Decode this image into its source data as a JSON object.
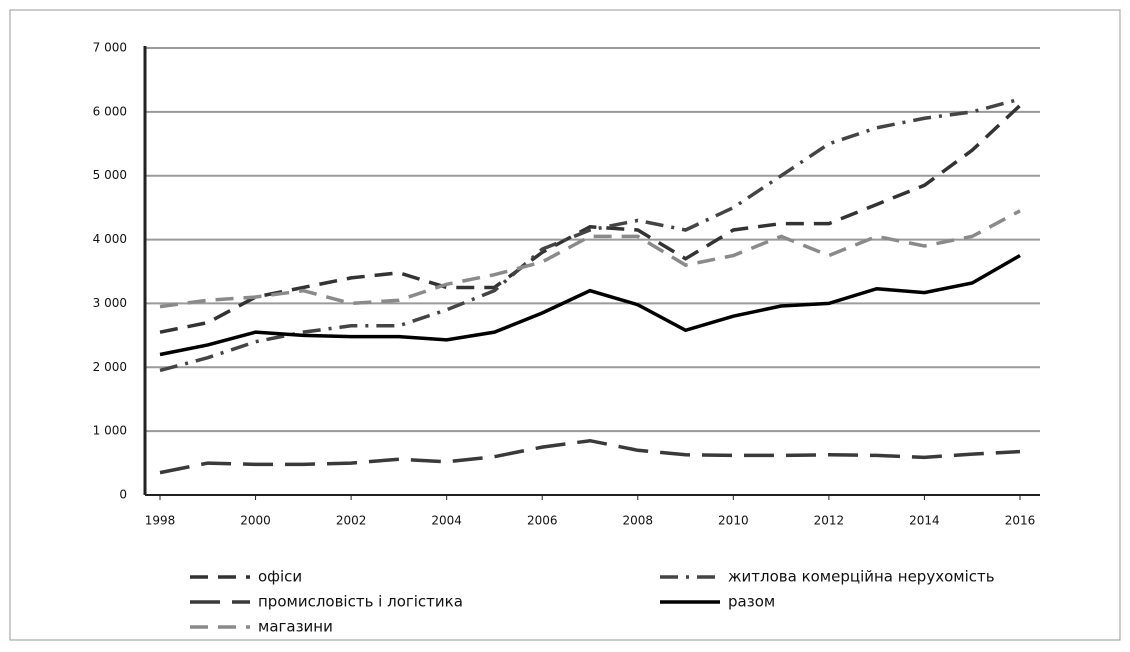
{
  "chart_data": {
    "type": "line",
    "x": [
      1998,
      1999,
      2000,
      2001,
      2002,
      2003,
      2004,
      2005,
      2006,
      2007,
      2008,
      2009,
      2010,
      2011,
      2012,
      2013,
      2014,
      2015,
      2016
    ],
    "xlim": [
      1998,
      2016
    ],
    "xticks": [
      1998,
      2000,
      2002,
      2004,
      2006,
      2008,
      2010,
      2012,
      2014,
      2016
    ],
    "ylim": [
      0,
      7000
    ],
    "yticks": [
      {
        "value": 0,
        "label": "0"
      },
      {
        "value": 1000,
        "label": "1 000"
      },
      {
        "value": 2000,
        "label": "2 000"
      },
      {
        "value": 3000,
        "label": "3 000"
      },
      {
        "value": 4000,
        "label": "4 000"
      },
      {
        "value": 5000,
        "label": "5 000"
      },
      {
        "value": 6000,
        "label": "6 000"
      },
      {
        "value": 7000,
        "label": "7 000"
      }
    ],
    "grid": true,
    "legend": "bottom",
    "series": [
      {
        "name": "офіси",
        "color": "#333333",
        "dash": "dashed",
        "values": [
          2550,
          2700,
          3100,
          3250,
          3400,
          3480,
          3250,
          3250,
          3800,
          4200,
          4150,
          3700,
          4150,
          4250,
          4250,
          4550,
          4850,
          5400,
          6100
        ]
      },
      {
        "name": "житлова комерційна нерухомість",
        "color": "#444444",
        "dash": "dashdot",
        "values": [
          1950,
          2150,
          2400,
          2550,
          2650,
          2650,
          2900,
          3200,
          3850,
          4150,
          4300,
          4150,
          4500,
          5000,
          5500,
          5750,
          5900,
          6000,
          6200
        ]
      },
      {
        "name": "промисловість і логістика",
        "color": "#3a3a3a",
        "dash": "longdash",
        "values": [
          350,
          500,
          480,
          480,
          500,
          560,
          520,
          600,
          750,
          850,
          700,
          630,
          620,
          620,
          630,
          620,
          590,
          640,
          680
        ]
      },
      {
        "name": "разом",
        "color": "#000000",
        "dash": "solid",
        "values": [
          2200,
          2350,
          2550,
          2500,
          2480,
          2480,
          2430,
          2550,
          2850,
          3200,
          2980,
          2580,
          2800,
          2960,
          3000,
          3230,
          3170,
          3320,
          3750
        ]
      },
      {
        "name": "магазини",
        "color": "#8a8a8a",
        "dash": "dashed",
        "values": [
          2950,
          3050,
          3100,
          3200,
          3000,
          3050,
          3300,
          3450,
          3650,
          4050,
          4050,
          3600,
          3750,
          4050,
          3750,
          4050,
          3900,
          4050,
          4450
        ]
      }
    ]
  }
}
